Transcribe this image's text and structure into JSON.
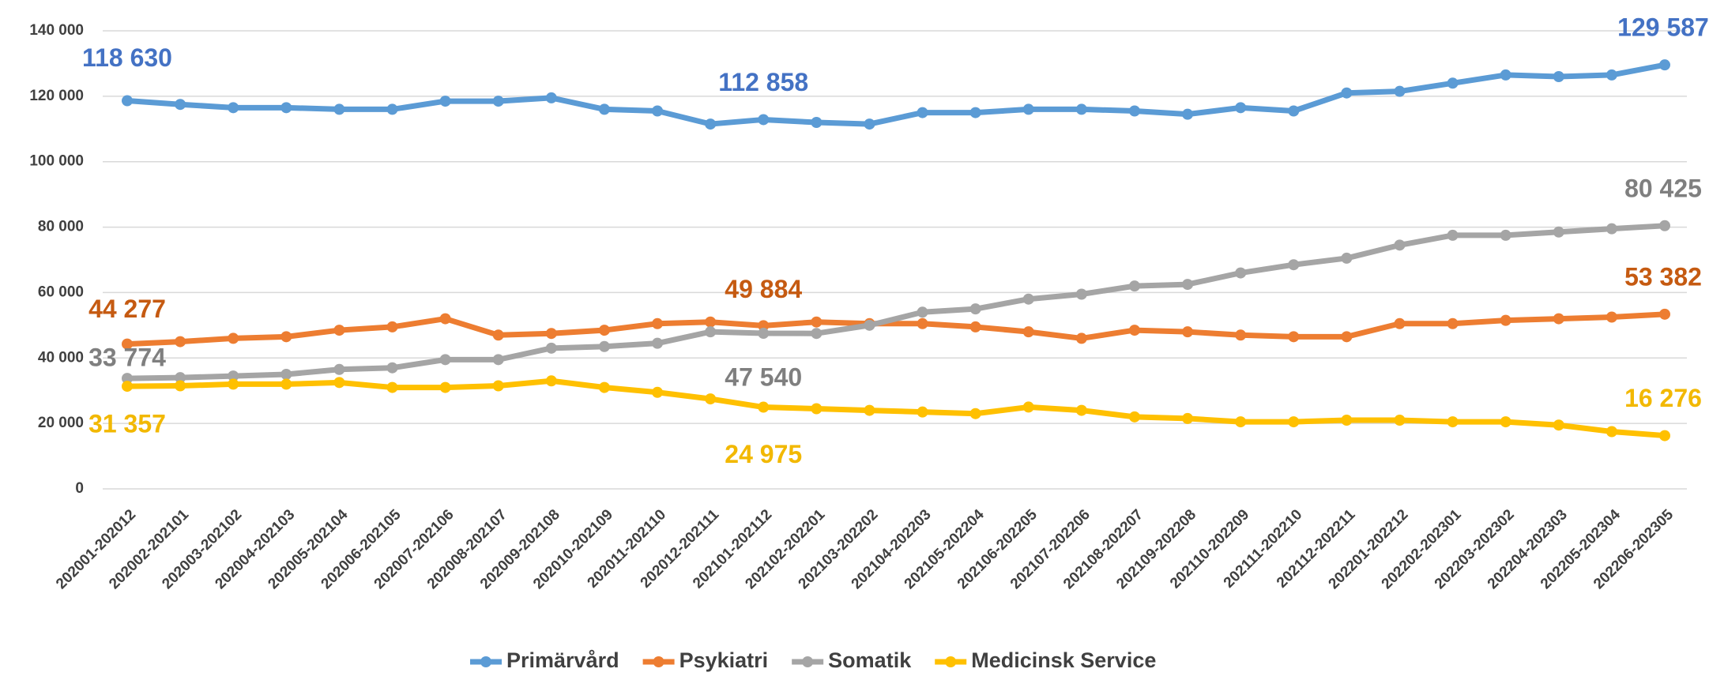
{
  "chart_data": {
    "type": "line",
    "categories": [
      "202001-202012",
      "202002-202101",
      "202003-202102",
      "202004-202103",
      "202005-202104",
      "202006-202105",
      "202007-202106",
      "202008-202107",
      "202009-202108",
      "202010-202109",
      "202011-202110",
      "202012-202111",
      "202101-202112",
      "202102-202201",
      "202103-202202",
      "202104-202203",
      "202105-202204",
      "202106-202205",
      "202107-202206",
      "202108-202207",
      "202109-202208",
      "202110-202209",
      "202111-202210",
      "202112-202211",
      "202201-202212",
      "202202-202301",
      "202203-202302",
      "202204-202303",
      "202205-202304",
      "202206-202305"
    ],
    "ylim": [
      0,
      140000
    ],
    "yticks": [
      0,
      {
        "value": 20000,
        "label": "20 000"
      },
      {
        "value": 40000,
        "label": "40 000"
      },
      {
        "value": 60000,
        "label": "60 000"
      },
      {
        "value": 80000,
        "label": "80 000"
      },
      {
        "value": 100000,
        "label": "100 000"
      },
      {
        "value": 120000,
        "label": "120 000"
      },
      {
        "value": 140000,
        "label": "140 000"
      }
    ],
    "grid": true,
    "legend": "bottom",
    "series": [
      {
        "name": "Primärvård",
        "color": "#5b9bd5",
        "label_color": "#4472c4",
        "values": [
          118630,
          117500,
          116500,
          116500,
          116000,
          116000,
          118500,
          118500,
          119500,
          116000,
          115500,
          111500,
          112858,
          112000,
          111500,
          115000,
          115000,
          116000,
          116000,
          115500,
          114500,
          116500,
          115500,
          121000,
          121500,
          124000,
          126500,
          126000,
          126500,
          129587
        ],
        "value_labels": [
          "118 630",
          null,
          null,
          null,
          null,
          null,
          null,
          null,
          null,
          null,
          null,
          null,
          "112 858",
          null,
          null,
          null,
          null,
          null,
          null,
          null,
          null,
          null,
          null,
          null,
          null,
          null,
          null,
          null,
          null,
          "129 587"
        ]
      },
      {
        "name": "Psykiatri",
        "color": "#ed7d31",
        "label_color": "#c55a11",
        "values": [
          44277,
          45000,
          46000,
          46500,
          48500,
          49500,
          52000,
          47000,
          47500,
          48500,
          50500,
          51000,
          49884,
          51000,
          50500,
          50500,
          49500,
          48000,
          46000,
          48500,
          48000,
          47000,
          46500,
          46500,
          50500,
          50500,
          51500,
          52000,
          52500,
          53382
        ],
        "value_labels": [
          "44 277",
          null,
          null,
          null,
          null,
          null,
          null,
          null,
          null,
          null,
          null,
          null,
          "49 884",
          null,
          null,
          null,
          null,
          null,
          null,
          null,
          null,
          null,
          null,
          null,
          null,
          null,
          null,
          null,
          null,
          "53 382"
        ]
      },
      {
        "name": "Somatik",
        "color": "#a5a5a5",
        "label_color": "#7f7f7f",
        "values": [
          33774,
          34000,
          34500,
          35000,
          36500,
          37000,
          39500,
          39500,
          43000,
          43500,
          44500,
          48000,
          47540,
          47500,
          50000,
          54000,
          55000,
          58000,
          59500,
          62000,
          62500,
          66000,
          68500,
          70500,
          74500,
          77500,
          77500,
          78500,
          79500,
          80425
        ],
        "value_labels": [
          "33 774",
          null,
          null,
          null,
          null,
          null,
          null,
          null,
          null,
          null,
          null,
          null,
          "47 540",
          null,
          null,
          null,
          null,
          null,
          null,
          null,
          null,
          null,
          null,
          null,
          null,
          null,
          null,
          null,
          null,
          "80 425"
        ]
      },
      {
        "name": "Medicinsk Service",
        "color": "#ffc000",
        "label_color": "#f2b800",
        "values": [
          31357,
          31500,
          32000,
          32000,
          32500,
          31000,
          31000,
          31500,
          33000,
          31000,
          29500,
          27500,
          24975,
          24500,
          24000,
          23500,
          23000,
          25000,
          24000,
          22000,
          21500,
          20500,
          20500,
          21000,
          21000,
          20500,
          20500,
          19500,
          17500,
          16276
        ],
        "value_labels": [
          "31 357",
          null,
          null,
          null,
          null,
          null,
          null,
          null,
          null,
          null,
          null,
          null,
          "24 975",
          null,
          null,
          null,
          null,
          null,
          null,
          null,
          null,
          null,
          null,
          null,
          null,
          null,
          null,
          null,
          null,
          "16 276"
        ]
      }
    ]
  }
}
